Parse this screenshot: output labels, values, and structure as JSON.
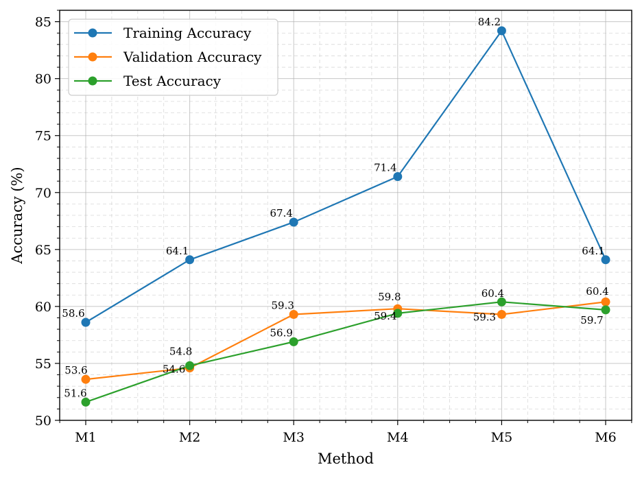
{
  "chart_data": {
    "type": "line",
    "categories": [
      "M1",
      "M2",
      "M3",
      "M4",
      "M5",
      "M6"
    ],
    "series": [
      {
        "name": "Training Accuracy",
        "values": [
          58.6,
          64.1,
          67.4,
          71.4,
          84.2,
          64.1
        ],
        "labels": [
          "58.6",
          "64.1",
          "67.4",
          "71.4",
          "84.2",
          "64.1"
        ],
        "color": "#1f77b4"
      },
      {
        "name": "Validation Accuracy",
        "values": [
          53.6,
          54.6,
          59.3,
          59.8,
          59.3,
          60.4
        ],
        "labels": [
          "53.6",
          "54.6",
          "59.3",
          "59.8",
          "59.3",
          "60.4"
        ],
        "color": "#ff7f0e"
      },
      {
        "name": "Test Accuracy",
        "values": [
          51.6,
          54.8,
          56.9,
          59.4,
          60.4,
          59.7
        ],
        "labels": [
          "51.6",
          "54.8",
          "56.9",
          "59.4",
          "60.4",
          "59.7"
        ],
        "color": "#2ca02c"
      }
    ],
    "xlabel": "Method",
    "ylabel": "Accuracy (%)",
    "ylim": [
      50,
      86
    ],
    "yticks": [
      50,
      55,
      60,
      65,
      70,
      75,
      80,
      85
    ],
    "ytick_labels": [
      "50",
      "55",
      "60",
      "65",
      "70",
      "75",
      "80",
      "85"
    ],
    "grid": true,
    "legend": "top-left"
  }
}
